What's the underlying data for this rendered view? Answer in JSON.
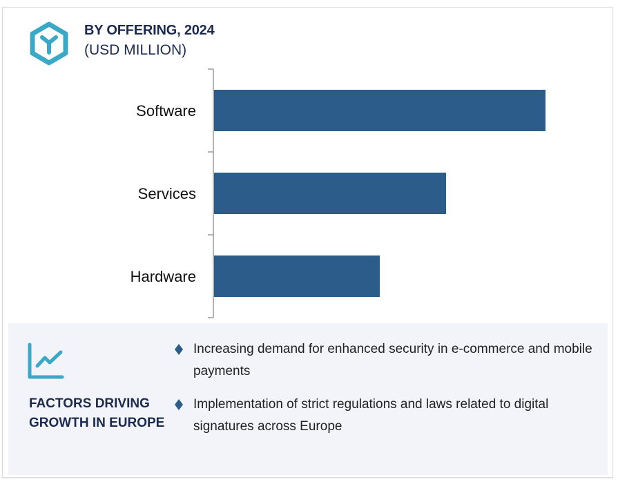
{
  "header": {
    "title": "BY OFFERING, 2024",
    "subtitle": "(USD MILLION)",
    "icon": "cube-icon"
  },
  "colors": {
    "bar": "#2c5d8a",
    "accent_icon": "#3aa9c7",
    "title_text": "#1b2a4e",
    "panel_bg": "#f3f4f9",
    "bullet": "#2c5d8a",
    "axis": "#9a9a9a"
  },
  "chart_data": {
    "type": "bar",
    "orientation": "horizontal",
    "title": "BY OFFERING, 2024",
    "subtitle": "(USD MILLION)",
    "categories": [
      "Software",
      "Services",
      "Hardware"
    ],
    "values": [
      100,
      70,
      50
    ],
    "value_note": "relative bar lengths; no value axis or data labels shown",
    "xlabel": "",
    "ylabel": "",
    "xlim": [
      0,
      100
    ],
    "grid": false,
    "legend": "none"
  },
  "factors": {
    "icon": "trend-chart-icon",
    "title": "FACTORS DRIVING GROWTH IN EUROPE",
    "bullets": [
      "Increasing demand for enhanced security in e-commerce and mobile payments",
      "Implementation of strict regulations and laws related to digital signatures across Europe"
    ]
  }
}
